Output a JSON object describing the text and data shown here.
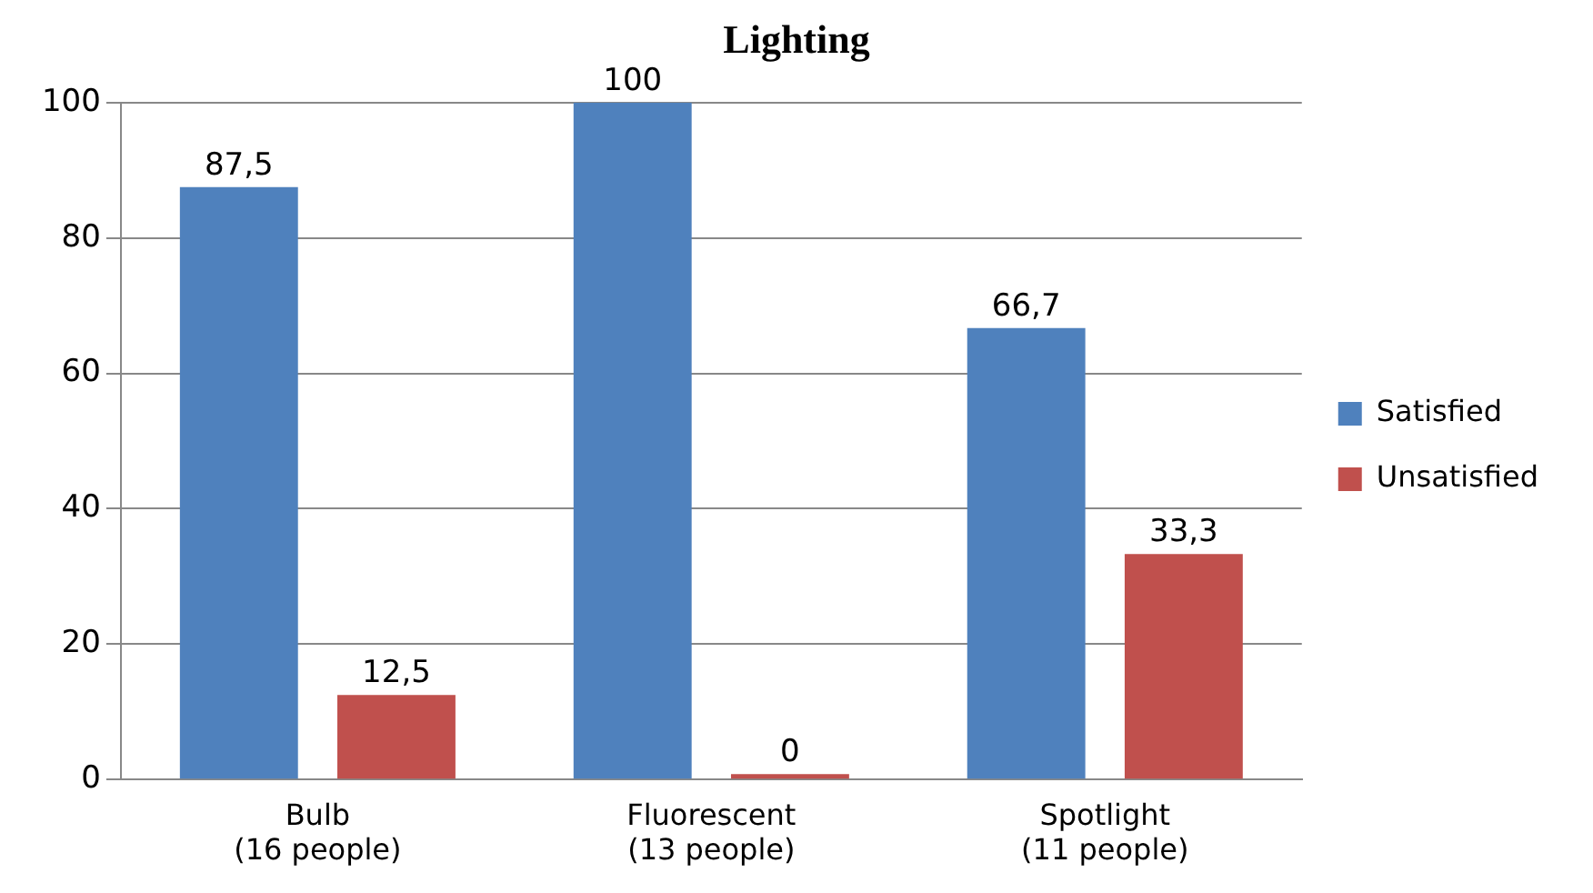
{
  "chart_data": {
    "type": "bar",
    "title": "Lighting",
    "categories": [
      "Bulb\n(16 people)",
      "Fluorescent\n(13 people)",
      "Spotlight\n(11 people)"
    ],
    "series": [
      {
        "name": "Satisfied",
        "color": "#4f81bd",
        "values": [
          87.5,
          100,
          66.7
        ],
        "value_labels": [
          "87,5",
          "100",
          "66,7"
        ]
      },
      {
        "name": "Unsatisfied",
        "color": "#c0504d",
        "values": [
          12.5,
          0,
          33.3
        ],
        "value_labels": [
          "12,5",
          "0",
          "33,3"
        ]
      }
    ],
    "ylim": [
      0,
      100
    ],
    "yticks": [
      0,
      20,
      40,
      60,
      80,
      100
    ],
    "grid": "y",
    "legend": "right"
  }
}
